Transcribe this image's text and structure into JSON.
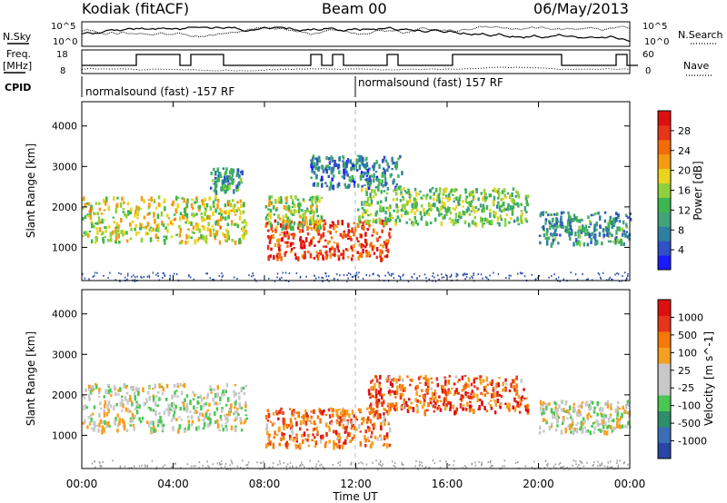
{
  "header": {
    "station": "Kodiak (fitACF)",
    "beam": "Beam 00",
    "date": "06/May/2013"
  },
  "status_panel": {
    "left_labels": {
      "nsky": "N.Sky",
      "freq_line1": "Freq.",
      "freq_line2": "[MHz]",
      "cpid": "CPID"
    },
    "right_labels": {
      "nsearch": "N.Search",
      "nave": "Nave"
    },
    "noise_ticks_left": [
      "10^5",
      "10^0"
    ],
    "noise_ticks_right": [
      "10^5",
      "10^0"
    ],
    "freq_ticks": [
      "18",
      "8"
    ],
    "nave_ticks": [
      "60",
      "0"
    ],
    "cpid_segments": [
      {
        "label": "normalsound (fast) -157 RF",
        "start_hour": 0,
        "end_hour": 12
      },
      {
        "label": "normalsound (fast) 157 RF",
        "start_hour": 12,
        "end_hour": 24
      }
    ]
  },
  "time_axis": {
    "label": "Time UT",
    "ticks": [
      "00:00",
      "04:00",
      "08:00",
      "12:00",
      "16:00",
      "20:00",
      "00:00"
    ]
  },
  "chart_data": [
    {
      "type": "heatmap",
      "title": "",
      "quantity": "Power",
      "xlabel": "Time UT",
      "ylabel": "Slant Range [km]",
      "xlim_hours": [
        0,
        24
      ],
      "ylim_km": [
        180,
        4600
      ],
      "yticks": [
        "1000",
        "2000",
        "3000",
        "4000"
      ],
      "colorbar": {
        "label": "Power [dB]",
        "ticks": [
          "4",
          "8",
          "12",
          "16",
          "20",
          "24",
          "28"
        ]
      },
      "colors": [
        "#1a1aff",
        "#3050c8",
        "#2e7fa0",
        "#42a37a",
        "#3cb64e",
        "#8fd13a",
        "#e8d51c",
        "#f59b12",
        "#f56b08",
        "#e8341a",
        "#dd1010"
      ],
      "scatter_regions": [
        {
          "t0": 0.0,
          "t1": 7.2,
          "r0": 1150,
          "r1": 2300,
          "level": 0.55
        },
        {
          "t0": 5.6,
          "t1": 7.0,
          "r0": 2400,
          "r1": 3000,
          "level": 0.3
        },
        {
          "t0": 8.0,
          "t1": 13.5,
          "r0": 750,
          "r1": 1700,
          "level": 0.85
        },
        {
          "t0": 8.0,
          "t1": 10.5,
          "r0": 1500,
          "r1": 2300,
          "level": 0.5
        },
        {
          "t0": 10.0,
          "t1": 14.0,
          "r0": 2500,
          "r1": 3300,
          "level": 0.25
        },
        {
          "t0": 12.0,
          "t1": 19.5,
          "r0": 1600,
          "r1": 2500,
          "level": 0.45
        },
        {
          "t0": 20.0,
          "t1": 24.0,
          "r0": 1100,
          "r1": 1900,
          "level": 0.3
        }
      ]
    },
    {
      "type": "heatmap",
      "title": "",
      "quantity": "Velocity",
      "xlabel": "Time UT",
      "ylabel": "Slant Range [km]",
      "xlim_hours": [
        0,
        24
      ],
      "ylim_km": [
        180,
        4600
      ],
      "yticks": [
        "1000",
        "2000",
        "3000",
        "4000"
      ],
      "colorbar": {
        "label": "Velocity [m s^-1]",
        "ticks": [
          "1000",
          "500",
          "100",
          "25",
          "-25",
          "-100",
          "-500",
          "-1000"
        ]
      },
      "colors": [
        "#2846a8",
        "#3a6fb8",
        "#2e8f6a",
        "#48c850",
        "#c8c8c8",
        "#c8c8c8",
        "#f5a020",
        "#f57808",
        "#e8341a",
        "#dd1010"
      ],
      "scatter_regions": [
        {
          "t0": 0.0,
          "t1": 7.2,
          "r0": 1150,
          "r1": 2300,
          "level": 0.5
        },
        {
          "t0": 8.0,
          "t1": 13.5,
          "r0": 750,
          "r1": 1700,
          "level": 0.75
        },
        {
          "t0": 12.5,
          "t1": 19.5,
          "r0": 1600,
          "r1": 2500,
          "level": 0.78
        },
        {
          "t0": 20.0,
          "t1": 24.0,
          "r0": 1100,
          "r1": 1900,
          "level": 0.5
        }
      ]
    }
  ]
}
